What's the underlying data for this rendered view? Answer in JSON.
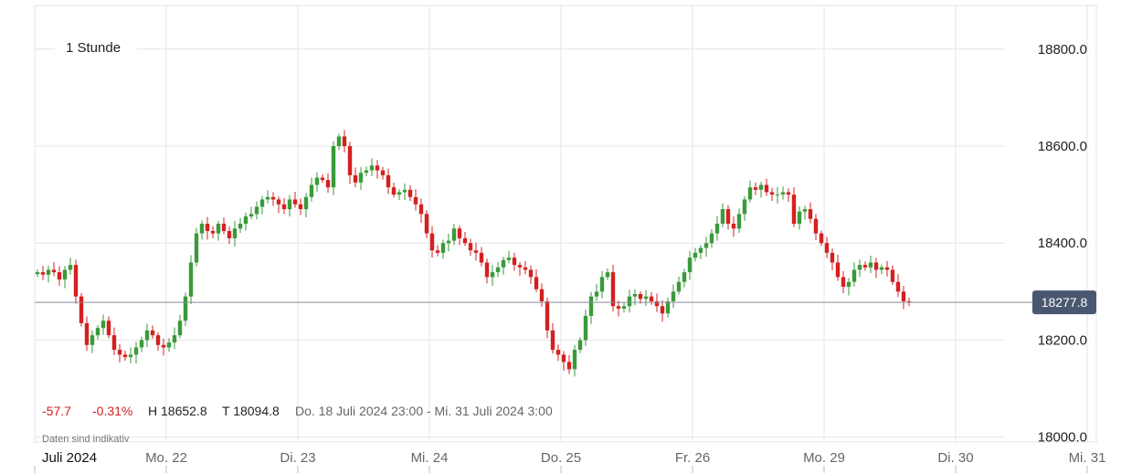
{
  "chart_data": {
    "type": "candlestick",
    "timeframe": "1 Stunde",
    "ylim": [
      17990,
      18890
    ],
    "y_ticks": [
      "18800.0",
      "18600.0",
      "18400.0",
      "18200.0",
      "18000.0"
    ],
    "y_tick_values": [
      18800,
      18600,
      18400,
      18200,
      18000
    ],
    "x_labels": [
      "Juli 2024",
      "Mo. 22",
      "Di. 23",
      "Mi. 24",
      "Do. 25",
      "Fr. 26",
      "Mo. 29",
      "Di. 30",
      "Mi. 31"
    ],
    "x_label_index": [
      0,
      24,
      48,
      72,
      96,
      120,
      144,
      168,
      192
    ],
    "last_price": 18277.8,
    "last_price_label": "18277.8",
    "stats": {
      "change": "-57.7",
      "change_pct": "-0.31%",
      "high": "H 18652.8",
      "low": "T 18094.8",
      "range": "Do. 18 Juli 2024 23:00 - Mi. 31 Juli 2024 3:00"
    },
    "note": "Daten sind indikativ",
    "colors": {
      "up": "#3a9a3a",
      "down": "#d42020",
      "badge": "#4a5770",
      "grid": "#e6e6e6"
    },
    "closes": [
      18340,
      18335,
      18345,
      18340,
      18325,
      18345,
      18355,
      18290,
      18235,
      18190,
      18210,
      18225,
      18240,
      18210,
      18180,
      18170,
      18165,
      18170,
      18185,
      18200,
      18220,
      18210,
      18190,
      18185,
      18195,
      18210,
      18240,
      18290,
      18360,
      18420,
      18440,
      18425,
      18420,
      18440,
      18425,
      18410,
      18430,
      18440,
      18455,
      18460,
      18475,
      18490,
      18495,
      18490,
      18480,
      18470,
      18490,
      18480,
      18470,
      18495,
      18520,
      18535,
      18530,
      18515,
      18600,
      18620,
      18600,
      18540,
      18525,
      18545,
      18550,
      18560,
      18550,
      18540,
      18515,
      18500,
      18505,
      18510,
      18495,
      18480,
      18460,
      18420,
      18385,
      18380,
      18400,
      18405,
      18430,
      18410,
      18400,
      18385,
      18380,
      18360,
      18330,
      18340,
      18350,
      18365,
      18370,
      18355,
      18350,
      18345,
      18330,
      18305,
      18280,
      18220,
      18180,
      18170,
      18155,
      18140,
      18180,
      18200,
      18250,
      18290,
      18300,
      18330,
      18340,
      18270,
      18265,
      18270,
      18290,
      18295,
      18285,
      18290,
      18280,
      18270,
      18255,
      18280,
      18300,
      18320,
      18340,
      18370,
      18380,
      18390,
      18400,
      18420,
      18440,
      18470,
      18440,
      18430,
      18460,
      18490,
      18515,
      18510,
      18520,
      18505,
      18500,
      18500,
      18505,
      18500,
      18440,
      18465,
      18470,
      18450,
      18420,
      18400,
      18380,
      18360,
      18330,
      18310,
      18320,
      18345,
      18355,
      18350,
      18360,
      18345,
      18350,
      18345,
      18320,
      18300,
      18280,
      18278
    ],
    "candle_start_index": 0
  }
}
